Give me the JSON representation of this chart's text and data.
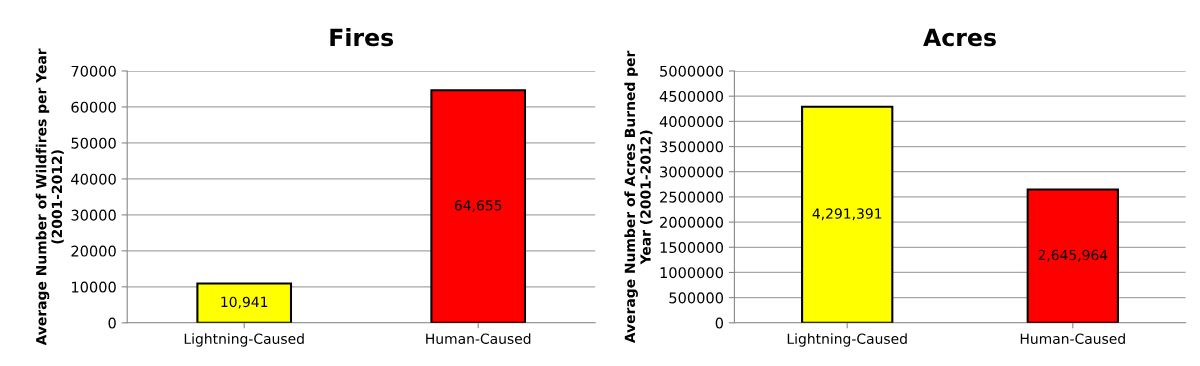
{
  "chart_data": [
    {
      "type": "bar",
      "title": "Fires",
      "ylabel": "Average Number of Wildfires per Year\n(2001-2012)",
      "categories": [
        "Lightning-Caused",
        "Human-Caused"
      ],
      "values": [
        10941,
        64655
      ],
      "colors": [
        "#ffff00",
        "#ff0000"
      ],
      "value_labels": [
        "10,941",
        "64,655"
      ],
      "ylim": [
        0,
        70000
      ],
      "yticks": [
        0,
        10000,
        20000,
        30000,
        40000,
        50000,
        60000,
        70000
      ],
      "grid": "y"
    },
    {
      "type": "bar",
      "title": "Acres",
      "ylabel": "Average Number of Acres Burned per\nYear (2001-2012)",
      "categories": [
        "Lightning-Caused",
        "Human-Caused"
      ],
      "values": [
        4291391,
        2645964
      ],
      "colors": [
        "#ffff00",
        "#ff0000"
      ],
      "value_labels": [
        "4,291,391",
        "2,645,964"
      ],
      "ylim": [
        0,
        5000000
      ],
      "yticks": [
        0,
        500000,
        1000000,
        1500000,
        2000000,
        2500000,
        3000000,
        3500000,
        4000000,
        4500000,
        5000000
      ],
      "grid": "y"
    }
  ]
}
